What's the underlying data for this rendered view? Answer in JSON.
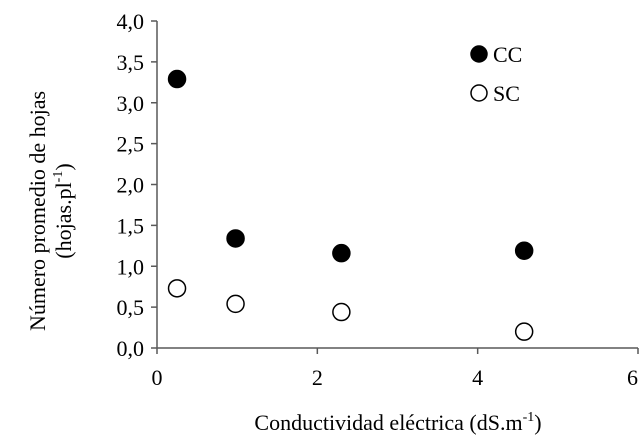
{
  "chart_data": {
    "type": "scatter",
    "title": "",
    "xlabel": {
      "main": "Conductividad eléctrica (dS.m",
      "sup": "-1",
      "end": ")"
    },
    "ylabel": {
      "line1": "Número promedio de hojas",
      "line2_main": "(hojas.pl",
      "line2_sup": "-1",
      "line2_end": ")"
    },
    "xlim": [
      0,
      6
    ],
    "ylim": [
      0,
      4
    ],
    "x_ticks": [
      "0",
      "2",
      "4",
      "6"
    ],
    "y_ticks": [
      "0,0",
      "0,5",
      "1,0",
      "1,5",
      "2,0",
      "2,5",
      "3,0",
      "3,5",
      "4,0"
    ],
    "grid": false,
    "legend_position": "top-right",
    "series": [
      {
        "name": "CC",
        "marker": "filled-circle",
        "color": "#000000",
        "points": [
          {
            "x": 0.25,
            "y": 3.29
          },
          {
            "x": 0.98,
            "y": 1.34
          },
          {
            "x": 2.3,
            "y": 1.16
          },
          {
            "x": 4.58,
            "y": 1.19
          }
        ]
      },
      {
        "name": "SC",
        "marker": "open-circle",
        "color": "#000000",
        "points": [
          {
            "x": 0.25,
            "y": 0.73
          },
          {
            "x": 0.98,
            "y": 0.54
          },
          {
            "x": 2.3,
            "y": 0.44
          },
          {
            "x": 4.58,
            "y": 0.2
          }
        ]
      }
    ]
  }
}
